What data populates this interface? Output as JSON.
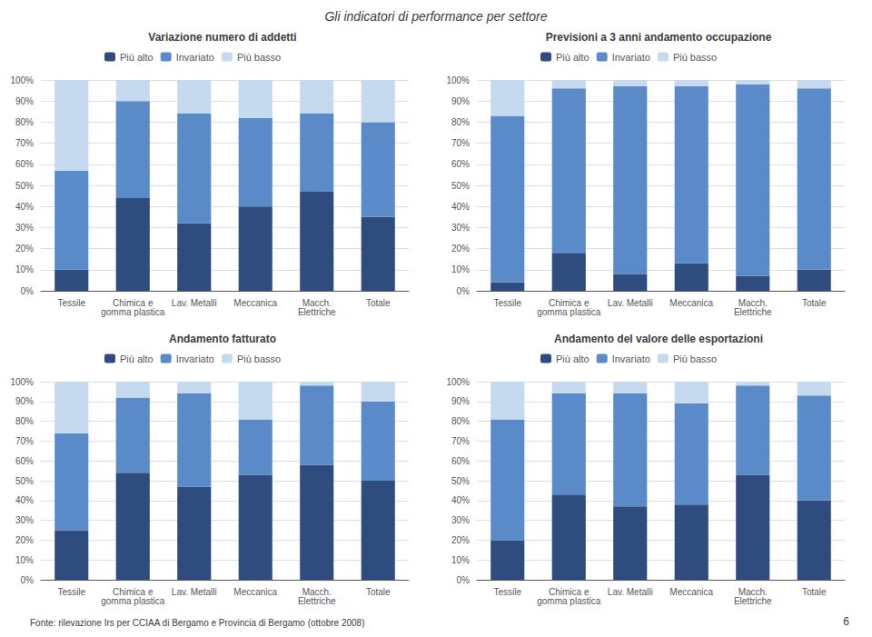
{
  "title": "Gli indicatori di performance per settore",
  "annotations": [
    "Fonte: rilevazione Irs per CCIAA di Bergamo e Provincia di Bergamo (ottobre 2008)",
    "6"
  ],
  "chart_data": [
    {
      "type": "bar",
      "title": "Variazione numero di addetti",
      "categories": [
        "Tessile",
        "Chimica e\ngomma plastica",
        "Lav. Metalli",
        "Meccanica",
        "Macch.\nElettriche",
        "Totale"
      ],
      "series": [
        {
          "name": "Più alto",
          "color": "#2E4C7E",
          "values": [
            10,
            44,
            32,
            40,
            47,
            35
          ]
        },
        {
          "name": "Invariato",
          "color": "#5B8AC9",
          "values": [
            47,
            46,
            52,
            42,
            37,
            45
          ]
        },
        {
          "name": "Più basso",
          "color": "#C5D9EF",
          "values": [
            43,
            10,
            16,
            18,
            16,
            20
          ]
        }
      ],
      "stacked": true,
      "ylim": [
        0,
        100
      ],
      "yticks": [
        {
          "value": 0,
          "label": "0%"
        },
        {
          "value": 10,
          "label": "10%"
        },
        {
          "value": 20,
          "label": "20%"
        },
        {
          "value": 30,
          "label": "30%"
        },
        {
          "value": 40,
          "label": "40%"
        },
        {
          "value": 50,
          "label": "50%"
        },
        {
          "value": 60,
          "label": "60%"
        },
        {
          "value": 70,
          "label": "70%"
        },
        {
          "value": 80,
          "label": "80%"
        },
        {
          "value": 90,
          "label": "90%"
        },
        {
          "value": 100,
          "label": "100%"
        }
      ],
      "grid": true,
      "legend": "top"
    },
    {
      "type": "bar",
      "title": "Previsioni a 3 anni andamento occupazione",
      "categories": [
        "Tessile",
        "Chimica e\ngomma plastica",
        "Lav. Metalli",
        "Meccanica",
        "Macch.\nElettriche",
        "Totale"
      ],
      "series": [
        {
          "name": "Più alto",
          "color": "#2E4C7E",
          "values": [
            4,
            18,
            8,
            13,
            7,
            10
          ]
        },
        {
          "name": "Invariato",
          "color": "#5B8AC9",
          "values": [
            79,
            78,
            89,
            84,
            91,
            86
          ]
        },
        {
          "name": "Più basso",
          "color": "#C5D9EF",
          "values": [
            17,
            4,
            3,
            3,
            2,
            4
          ]
        }
      ],
      "stacked": true,
      "ylim": [
        0,
        100
      ],
      "yticks": [
        {
          "value": 0,
          "label": "0%"
        },
        {
          "value": 10,
          "label": "10%"
        },
        {
          "value": 20,
          "label": "20%"
        },
        {
          "value": 30,
          "label": "30%"
        },
        {
          "value": 40,
          "label": "40%"
        },
        {
          "value": 50,
          "label": "50%"
        },
        {
          "value": 60,
          "label": "60%"
        },
        {
          "value": 70,
          "label": "70%"
        },
        {
          "value": 80,
          "label": "80%"
        },
        {
          "value": 90,
          "label": "90%"
        },
        {
          "value": 100,
          "label": "100%"
        }
      ],
      "grid": true,
      "legend": "top"
    },
    {
      "type": "bar",
      "title": "Andamento fatturato",
      "categories": [
        "Tessile",
        "Chimica e\ngomma plastica",
        "Lav. Metalli",
        "Meccanica",
        "Macch.\nElettriche",
        "Totale"
      ],
      "series": [
        {
          "name": "Più alto",
          "color": "#2E4C7E",
          "values": [
            25,
            54,
            47,
            53,
            58,
            50
          ]
        },
        {
          "name": "Invariato",
          "color": "#5B8AC9",
          "values": [
            49,
            38,
            47,
            28,
            40,
            40
          ]
        },
        {
          "name": "Più basso",
          "color": "#C5D9EF",
          "values": [
            26,
            8,
            6,
            19,
            2,
            10
          ]
        }
      ],
      "stacked": true,
      "ylim": [
        0,
        100
      ],
      "yticks": [
        {
          "value": 0,
          "label": "0%"
        },
        {
          "value": 10,
          "label": "10%"
        },
        {
          "value": 20,
          "label": "20%"
        },
        {
          "value": 30,
          "label": "30%"
        },
        {
          "value": 40,
          "label": "40%"
        },
        {
          "value": 50,
          "label": "50%"
        },
        {
          "value": 60,
          "label": "60%"
        },
        {
          "value": 70,
          "label": "70%"
        },
        {
          "value": 80,
          "label": "80%"
        },
        {
          "value": 90,
          "label": "90%"
        },
        {
          "value": 100,
          "label": "100%"
        }
      ],
      "grid": true,
      "legend": "top"
    },
    {
      "type": "bar",
      "title": "Andamento del valore delle esportazioni",
      "categories": [
        "Tessile",
        "Chimica e\ngomma plastica",
        "Lav. Metalli",
        "Meccanica",
        "Macch.\nElettriche",
        "Totale"
      ],
      "series": [
        {
          "name": "Più alto",
          "color": "#2E4C7E",
          "values": [
            20,
            43,
            37,
            38,
            53,
            40
          ]
        },
        {
          "name": "Invariato",
          "color": "#5B8AC9",
          "values": [
            61,
            51,
            57,
            51,
            45,
            53
          ]
        },
        {
          "name": "Più basso",
          "color": "#C5D9EF",
          "values": [
            19,
            6,
            6,
            11,
            2,
            7
          ]
        }
      ],
      "stacked": true,
      "ylim": [
        0,
        100
      ],
      "yticks": [
        {
          "value": 0,
          "label": "0%"
        },
        {
          "value": 10,
          "label": "10%"
        },
        {
          "value": 20,
          "label": "20%"
        },
        {
          "value": 30,
          "label": "30%"
        },
        {
          "value": 40,
          "label": "40%"
        },
        {
          "value": 50,
          "label": "50%"
        },
        {
          "value": 60,
          "label": "60%"
        },
        {
          "value": 70,
          "label": "70%"
        },
        {
          "value": 80,
          "label": "80%"
        },
        {
          "value": 90,
          "label": "90%"
        },
        {
          "value": 100,
          "label": "100%"
        }
      ],
      "grid": true,
      "legend": "top"
    }
  ]
}
